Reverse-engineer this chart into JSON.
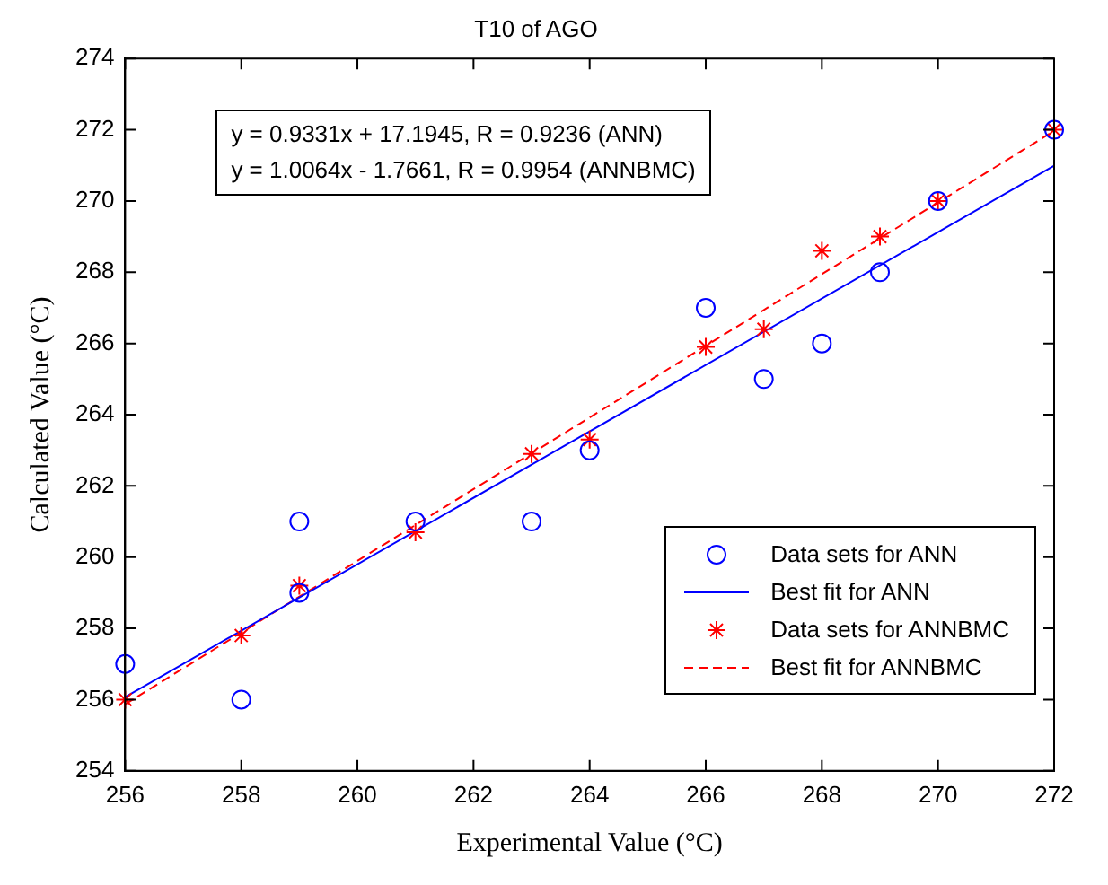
{
  "chart_data": {
    "type": "scatter",
    "title": "T10 of AGO",
    "xlabel": "Experimental Value (°C)",
    "ylabel": "Calculated Value (°C)",
    "annotations": [
      "y = 0.9331x + 17.1945, R = 0.9236  (ANN)",
      "y = 1.0064x - 1.7661, R = 0.9954  (ANNBMC)"
    ],
    "series": [
      {
        "name": "Data sets for  ANN",
        "marker": "circle",
        "color": "#0000ff",
        "x": [
          256,
          258,
          259,
          259,
          261,
          263,
          264,
          266,
          267,
          268,
          269,
          270,
          272
        ],
        "values": [
          257,
          256,
          261,
          259,
          261,
          261,
          263,
          267,
          265,
          266,
          268,
          270,
          272
        ]
      },
      {
        "name": "Best fit for ANN",
        "type": "line",
        "marker": "none",
        "line_style": "solid",
        "color": "#0000ff",
        "x": [
          256,
          272
        ],
        "values": [
          256.07,
          270.99
        ]
      },
      {
        "name": "Data sets for  ANNBMC",
        "marker": "cross",
        "color": "#ff0000",
        "x": [
          256,
          258,
          259,
          261,
          263,
          264,
          266,
          267,
          268,
          269,
          270,
          272
        ],
        "values": [
          256,
          257.8,
          259.2,
          260.7,
          262.9,
          263.3,
          265.9,
          266.4,
          268.6,
          269,
          270,
          272
        ]
      },
      {
        "name": "Best fit for ANNBMC",
        "type": "line",
        "marker": "none",
        "line_style": "dashed",
        "color": "#ff0000",
        "x": [
          256,
          272
        ],
        "values": [
          255.87,
          271.97
        ]
      }
    ],
    "xlim": [
      256,
      272
    ],
    "xticks": [
      256,
      258,
      260,
      262,
      264,
      266,
      268,
      270,
      272
    ],
    "ylim": [
      254,
      274
    ],
    "yticks": [
      254,
      256,
      258,
      260,
      262,
      264,
      266,
      268,
      270,
      272,
      274
    ],
    "grid": false,
    "legend": "bottom right"
  }
}
